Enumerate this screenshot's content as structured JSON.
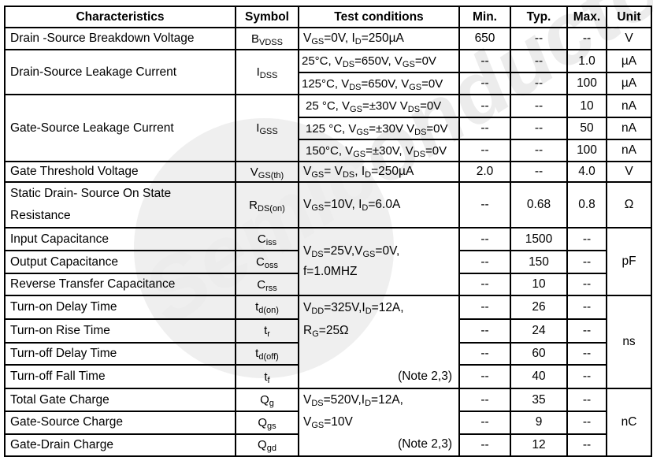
{
  "headers": {
    "characteristics": "Characteristics",
    "symbol": "Symbol",
    "test_conditions": "Test conditions",
    "min": "Min.",
    "typ": "Typ.",
    "max": "Max.",
    "unit": "Unit"
  },
  "rows": [
    {
      "name": "Drain -Source Breakdown Voltage",
      "symbol": "B_{VDSS}",
      "conditions": [
        "V_{GS}=0V,  I_{D}=250µA"
      ],
      "min": [
        "650"
      ],
      "typ": [
        "--"
      ],
      "max": [
        "--"
      ],
      "unit": [
        "V"
      ]
    },
    {
      "name": "Drain-Source Leakage Current",
      "symbol": "I_{DSS}",
      "conditions": [
        "25°C, V_{DS}=650V, V_{GS}=0V",
        "125°C, V_{DS}=650V, V_{GS}=0V"
      ],
      "min": [
        "--",
        "--"
      ],
      "typ": [
        "--",
        "--"
      ],
      "max": [
        "1.0",
        "100"
      ],
      "unit": [
        "µA",
        "µA"
      ]
    },
    {
      "name": "Gate-Source Leakage Current",
      "symbol": "I_{GSS}",
      "conditions": [
        "25 °C, V_{GS}=±30V  V_{DS}=0V",
        "125 °C, V_{GS}=±30V  V_{DS}=0V",
        "150°C, V_{GS}=±30V, V_{DS}=0V"
      ],
      "min": [
        "--",
        "--",
        "--"
      ],
      "typ": [
        "--",
        "--",
        "--"
      ],
      "max": [
        "10",
        "50",
        "100"
      ],
      "unit": [
        "nA",
        "nA",
        "nA"
      ]
    },
    {
      "name": "Gate Threshold Voltage",
      "symbol": "V_{GS(th)}",
      "conditions": [
        "V_{GS}= V_{DS}, I_{D}=250µA"
      ],
      "min": [
        "2.0"
      ],
      "typ": [
        "--"
      ],
      "max": [
        "4.0"
      ],
      "unit": [
        "V"
      ]
    },
    {
      "name_line1": "Static Drain- Source On State",
      "name_line2": "Resistance",
      "symbol": "R_{DS(on)}",
      "conditions": [
        "V_{GS}=10V, I_{D}=6.0A"
      ],
      "min": [
        "--"
      ],
      "typ": [
        "0.68"
      ],
      "max": [
        "0.8"
      ],
      "unit": [
        "Ω"
      ]
    }
  ],
  "capacitance": {
    "items": [
      {
        "name": "Input Capacitance",
        "symbol": "C_{iss}",
        "min": "--",
        "typ": "1500",
        "max": "--"
      },
      {
        "name": "Output Capacitance",
        "symbol": "C_{oss}",
        "min": "--",
        "typ": "150",
        "max": "--"
      },
      {
        "name": "Reverse Transfer Capacitance",
        "symbol": "C_{rss}",
        "min": "--",
        "typ": "10",
        "max": "--"
      }
    ],
    "conditions_line1": "V_{DS}=25V,V_{GS}=0V,",
    "conditions_line2": "f=1.0MHZ",
    "unit": "pF"
  },
  "switching": {
    "items": [
      {
        "name": "Turn-on Delay Time",
        "symbol": "t_{d(on)}",
        "min": "--",
        "typ": "26",
        "max": "--"
      },
      {
        "name": "Turn-on Rise Time",
        "symbol": "t_{r}",
        "min": "--",
        "typ": "24",
        "max": "--"
      },
      {
        "name": "Turn-off Delay Time",
        "symbol": "t_{d(off)}",
        "min": "--",
        "typ": "60",
        "max": "--"
      },
      {
        "name": "Turn-off Fall Time",
        "symbol": "t_{f}",
        "min": "--",
        "typ": "40",
        "max": "--"
      }
    ],
    "conditions_line1": "V_{DD}=325V,I_{D}=12A,",
    "conditions_line2": "R_{G}=25Ω",
    "note": "(Note 2,3)",
    "unit": "ns"
  },
  "gate_charge": {
    "items": [
      {
        "name": "Total Gate Charge",
        "symbol": "Q_{g}",
        "min": "--",
        "typ": "35",
        "max": "--"
      },
      {
        "name": "Gate-Source Charge",
        "symbol": "Q_{gs}",
        "min": "--",
        "typ": "9",
        "max": "--"
      },
      {
        "name": "Gate-Drain Charge",
        "symbol": "Q_{gd}",
        "min": "--",
        "typ": "12",
        "max": "--"
      }
    ],
    "conditions_line1": "V_{DS}=520V,I_{D}=12A,",
    "conditions_line2": "V_{GS}=10V",
    "note": "(Note 2,3)",
    "unit": "nC"
  },
  "watermark": {
    "text": "Semiconductor"
  }
}
